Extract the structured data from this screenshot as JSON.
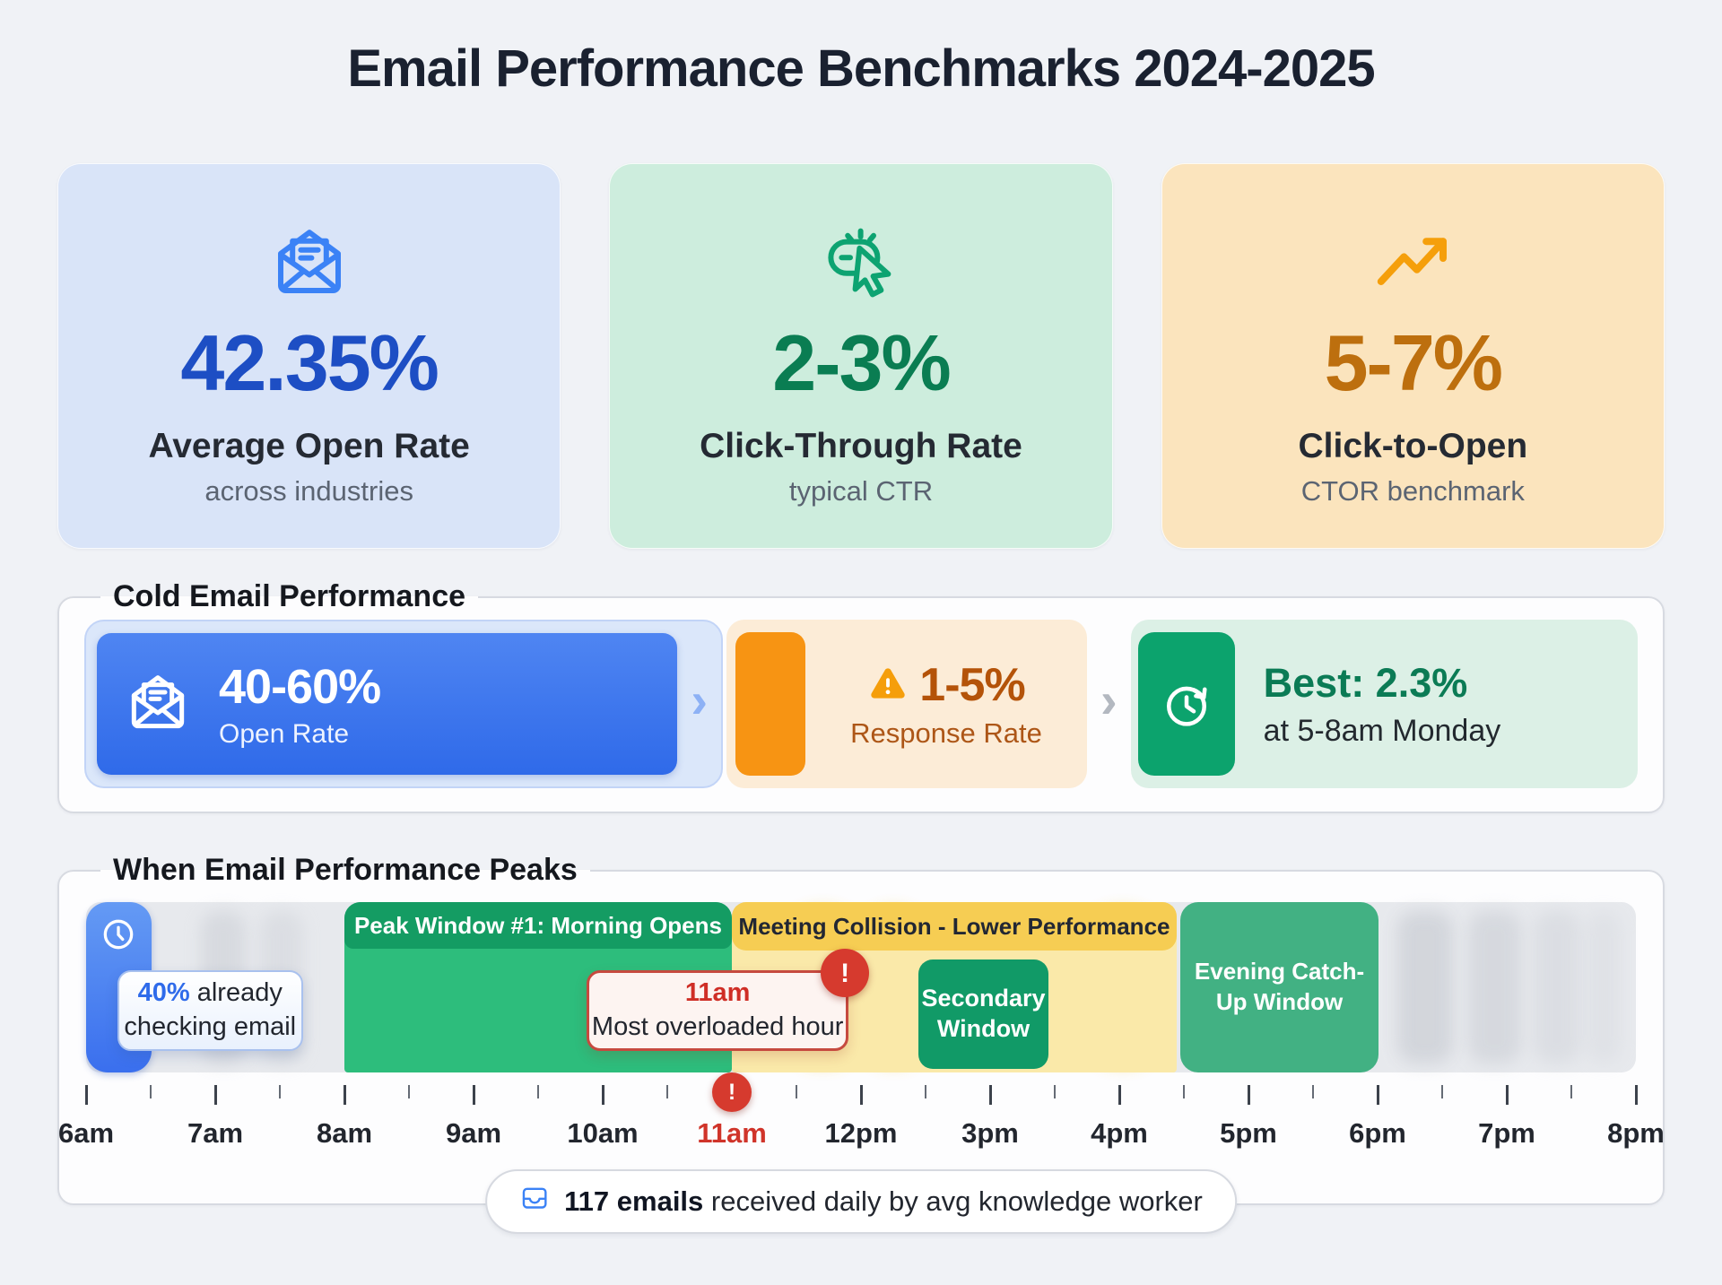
{
  "title": "Email Performance Benchmarks 2024-2025",
  "colors": {
    "page_bg": "#f0f2f6",
    "blue_accent": "#2f6ae9",
    "green_accent": "#0ca36d",
    "orange_accent": "#f79413",
    "yellow_accent": "#f6cd53",
    "red_alert": "#d63a2e"
  },
  "stat_cards": [
    {
      "icon": "mail-open-icon",
      "value": "42.35%",
      "label": "Average Open Rate",
      "sublabel": "across industries"
    },
    {
      "icon": "cursor-click-icon",
      "value": "2-3%",
      "label": "Click-Through Rate",
      "sublabel": "typical CTR"
    },
    {
      "icon": "trend-up-icon",
      "value": "5-7%",
      "label": "Click-to-Open",
      "sublabel": "CTOR benchmark"
    }
  ],
  "cold_email": {
    "section_title": "Cold Email Performance",
    "open_rate": {
      "value": "40-60%",
      "label": "Open Rate"
    },
    "response_rate": {
      "value": "1-5%",
      "label": "Response Rate"
    },
    "best_time": {
      "value": "Best: 2.3%",
      "label": "at 5-8am Monday"
    },
    "chevron": "›"
  },
  "timeline": {
    "section_title": "When Email Performance Peaks",
    "morning_callout": {
      "pct": "40%",
      "rest": " already",
      "line2": "checking email"
    },
    "peak_window_label": "Peak Window #1: Morning Opens",
    "collision_label": "Meeting Collision - Lower Performance",
    "overload_callout": {
      "time": "11am",
      "text": "Most overloaded hour"
    },
    "secondary_label": "Secondary Window",
    "evening_label": "Evening Catch-Up Window",
    "alert_glyph": "!",
    "axis_labels": [
      "6am",
      "7am",
      "8am",
      "9am",
      "10am",
      "11am",
      "12pm",
      "3pm",
      "4pm",
      "5pm",
      "6pm",
      "7pm",
      "8pm"
    ],
    "footer": {
      "bold": "117 emails",
      "rest": " received daily by avg knowledge worker"
    }
  },
  "chart_data": {
    "type": "bar",
    "subtype": "timeline-gantt",
    "title": "When Email Performance Peaks",
    "x": [
      "6am",
      "7am",
      "8am",
      "9am",
      "10am",
      "11am",
      "12pm",
      "3pm",
      "4pm",
      "5pm",
      "6pm",
      "7pm",
      "8pm"
    ],
    "x_note": "labels evenly spaced; scale jumps from 12pm to 3pm; minor tick between each pair of labels",
    "segments": [
      {
        "label": "40% already checking email",
        "at": "6am",
        "kind": "marker",
        "color": "#4e84f0"
      },
      {
        "label": "Peak Window #1: Morning Opens",
        "start": "8am",
        "end": "11am",
        "kind": "window",
        "color": "#2dbd7c"
      },
      {
        "label": "Meeting Collision - Lower Performance",
        "start": "11am",
        "end": "4:30pm",
        "kind": "window",
        "color": "#f6cd53"
      },
      {
        "label": "Secondary Window",
        "start": "2:45pm",
        "end": "3:30pm",
        "kind": "window",
        "color": "#119a67"
      },
      {
        "label": "Evening Catch-Up Window",
        "start": "4:35pm",
        "end": "6pm",
        "kind": "window",
        "color": "#42b183"
      },
      {
        "label": "Most overloaded hour",
        "at": "11am",
        "kind": "alert",
        "color": "#d63a2e"
      }
    ],
    "legend_position": "none",
    "grid": false,
    "stats": [
      {
        "value": "42.35%",
        "label": "Average Open Rate",
        "note": "across industries"
      },
      {
        "value": "2-3%",
        "label": "Click-Through Rate",
        "note": "typical CTR"
      },
      {
        "value": "5-7%",
        "label": "Click-to-Open",
        "note": "CTOR benchmark"
      },
      {
        "value": "40-60%",
        "label": "Cold email Open Rate"
      },
      {
        "value": "1-5%",
        "label": "Cold email Response Rate"
      },
      {
        "value": "Best: 2.3%",
        "label": "Cold email best response",
        "note": "at 5-8am Monday"
      },
      {
        "value": "117",
        "label": "emails received daily by avg knowledge worker"
      }
    ]
  }
}
